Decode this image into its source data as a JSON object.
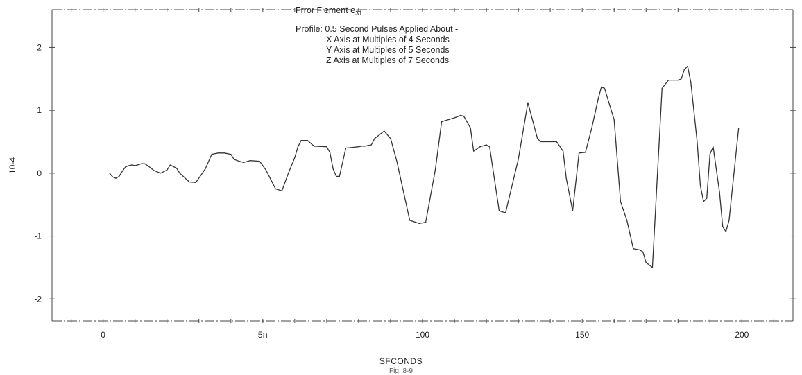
{
  "chart_data": {
    "type": "line",
    "title": "Frror Flement e",
    "title_subscript": "31",
    "subtitle_lines": [
      "Profile: 0.5 Second Pulses Applied About -",
      "X Axis at Multiples of 4 Seconds",
      "Y Axis at Multiples of 5 Seconds",
      "Z Axis at Multiples of 7 Seconds"
    ],
    "xlabel": "SFCONDS",
    "ylabel": "10-4",
    "caption": "Fig. 8-9",
    "xlim": [
      -16,
      216
    ],
    "ylim": [
      -2.35,
      2.6
    ],
    "xticks": [
      0,
      50,
      100,
      150,
      200
    ],
    "xtick_labels": [
      "0",
      "5ก",
      "100",
      "150",
      "200"
    ],
    "yticks": [
      2,
      1,
      0,
      -1,
      -2
    ],
    "ytick_labels": [
      "2",
      "1",
      "0",
      "-1",
      "-2"
    ],
    "grid": false,
    "line_color": "#333333",
    "x": [
      2,
      3,
      4,
      5,
      6,
      7,
      8,
      9,
      10,
      12,
      13,
      14,
      16,
      18,
      20,
      21,
      23,
      24,
      27,
      29,
      32,
      34,
      36,
      38,
      40,
      41,
      42,
      44,
      46,
      49,
      51,
      53,
      54,
      56,
      58,
      60,
      61,
      62,
      64,
      66,
      70,
      71,
      72,
      73,
      74,
      76,
      80,
      81,
      82,
      84,
      85,
      88,
      90,
      92,
      96,
      99,
      101,
      104,
      106,
      110,
      112,
      113,
      115,
      116,
      118,
      120,
      121,
      124,
      126,
      130,
      133,
      136,
      137,
      140,
      142,
      144,
      145,
      147,
      149,
      151,
      153,
      155,
      156,
      157,
      160,
      162,
      164,
      166,
      168,
      169,
      170,
      172,
      175,
      177,
      180,
      181,
      182,
      183,
      184,
      186,
      187,
      188,
      189,
      190,
      191,
      193,
      194,
      195,
      196,
      199
    ],
    "y": [
      0.0,
      -0.06,
      -0.08,
      -0.05,
      0.03,
      0.1,
      0.12,
      0.13,
      0.12,
      0.15,
      0.15,
      0.12,
      0.04,
      0.0,
      0.05,
      0.13,
      0.08,
      0.0,
      -0.14,
      -0.15,
      0.07,
      0.3,
      0.32,
      0.32,
      0.3,
      0.22,
      0.2,
      0.17,
      0.2,
      0.19,
      0.05,
      -0.15,
      -0.25,
      -0.28,
      0.0,
      0.25,
      0.42,
      0.52,
      0.52,
      0.43,
      0.42,
      0.33,
      0.07,
      -0.05,
      -0.05,
      0.4,
      0.42,
      0.43,
      0.43,
      0.45,
      0.55,
      0.67,
      0.55,
      0.18,
      -0.75,
      -0.8,
      -0.78,
      0.05,
      0.82,
      0.88,
      0.92,
      0.9,
      0.72,
      0.35,
      0.42,
      0.45,
      0.42,
      -0.6,
      -0.63,
      0.22,
      1.12,
      0.55,
      0.5,
      0.5,
      0.5,
      0.35,
      -0.08,
      -0.6,
      0.32,
      0.33,
      0.72,
      1.18,
      1.37,
      1.35,
      0.85,
      -0.45,
      -0.75,
      -1.2,
      -1.22,
      -1.25,
      -1.42,
      -1.5,
      1.35,
      1.48,
      1.48,
      1.5,
      1.65,
      1.7,
      1.45,
      0.5,
      -0.2,
      -0.45,
      -0.4,
      0.3,
      0.42,
      -0.3,
      -0.85,
      -0.93,
      -0.75,
      0.72
    ]
  }
}
